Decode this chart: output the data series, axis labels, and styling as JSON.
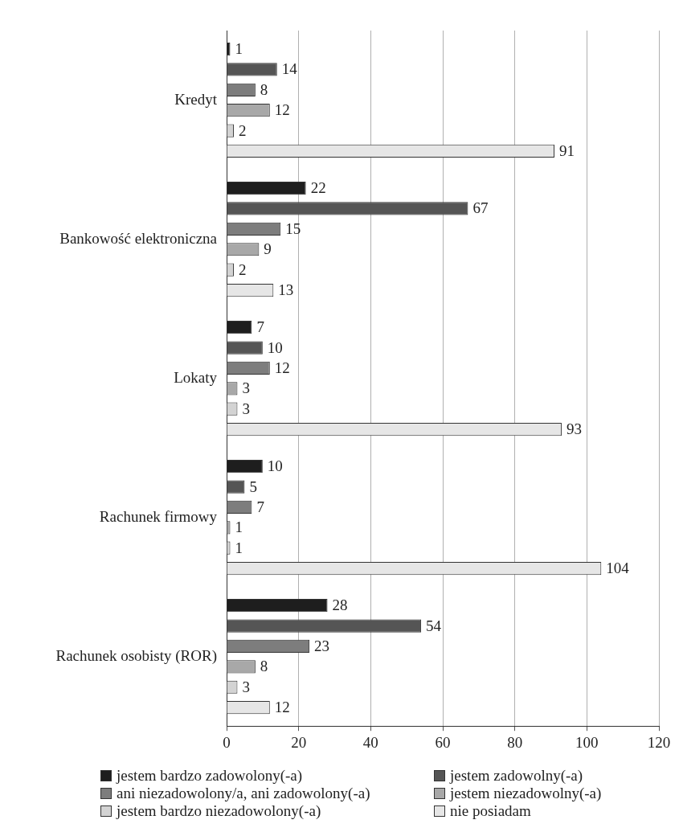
{
  "chart_data": {
    "type": "bar",
    "orientation": "horizontal",
    "categories": [
      "Kredyt",
      "Bankowość elektroniczna",
      "Lokaty",
      "Rachunek firmowy",
      "Rachunek osobisty (ROR)"
    ],
    "series": [
      {
        "name": "jestem bardzo zadowolony(-a)",
        "color": "#1e1e1e",
        "values": [
          1,
          22,
          7,
          10,
          28
        ]
      },
      {
        "name": "jestem zadowolny(-a)",
        "color": "#555555",
        "values": [
          14,
          67,
          10,
          5,
          54
        ]
      },
      {
        "name": "ani niezadowolony/a, ani zadowolony(-a)",
        "color": "#7d7d7d",
        "values": [
          8,
          15,
          12,
          7,
          23
        ]
      },
      {
        "name": "jestem niezadowolny(-a)",
        "color": "#a8a8a8",
        "values": [
          12,
          9,
          3,
          1,
          8
        ]
      },
      {
        "name": "jestem bardzo niezadowolony(-a)",
        "color": "#d3d3d3",
        "values": [
          2,
          2,
          3,
          1,
          3
        ]
      },
      {
        "name": "nie posiadam",
        "color": "#e6e6e6",
        "values": [
          91,
          13,
          93,
          104,
          12
        ]
      }
    ],
    "xlim": [
      0,
      120
    ],
    "xticks": [
      0,
      20,
      40,
      60,
      80,
      100,
      120
    ],
    "grid": "x",
    "legend": "bottom",
    "data_labels": true
  }
}
